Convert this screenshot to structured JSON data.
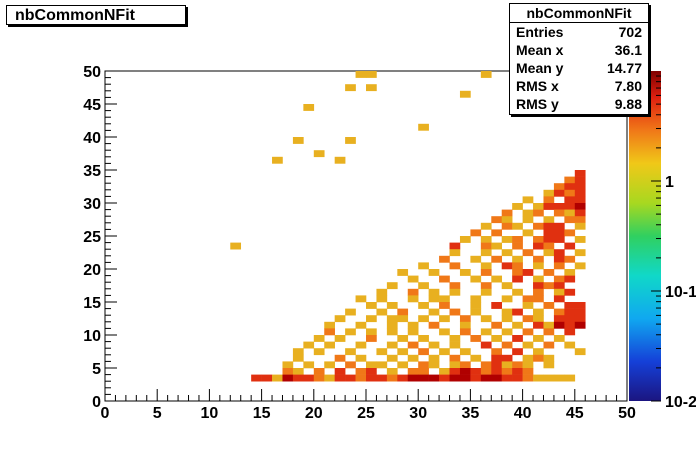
{
  "title": "nbCommonNFit",
  "stats": {
    "title": "nbCommonNFit",
    "rows": [
      {
        "label": "Entries",
        "value": "702"
      },
      {
        "label": "Mean x",
        "value": "36.1"
      },
      {
        "label": "Mean y",
        "value": "14.77"
      },
      {
        "label": "RMS x",
        "value": "7.80"
      },
      {
        "label": "RMS y",
        "value": "9.88"
      }
    ]
  },
  "chart_data": {
    "type": "heatmap",
    "title": "nbCommonNFit",
    "xlabel": "",
    "ylabel": "",
    "xlim": [
      0,
      50
    ],
    "ylim": [
      0,
      50
    ],
    "bin_width": 1,
    "x_ticks": [
      0,
      5,
      10,
      15,
      20,
      25,
      30,
      35,
      40,
      45,
      50
    ],
    "y_ticks": [
      0,
      5,
      10,
      15,
      20,
      25,
      30,
      35,
      40,
      45,
      50
    ],
    "colorbar": {
      "scale": "log",
      "ticks": [
        {
          "value": 1,
          "label": "1"
        },
        {
          "value": 0.1,
          "label": "10-1"
        },
        {
          "value": 0.01,
          "label": "10-2"
        }
      ],
      "range": [
        0.01,
        10
      ]
    },
    "color_levels": {
      "low": "#e8b020",
      "mid": "#f07818",
      "high": "#e03010",
      "max": "#b00000"
    },
    "cells": [
      [
        24,
        49,
        "low"
      ],
      [
        25,
        49,
        "low"
      ],
      [
        36,
        49,
        "low"
      ],
      [
        23,
        47,
        "low"
      ],
      [
        25,
        47,
        "low"
      ],
      [
        34,
        46,
        "low"
      ],
      [
        19,
        44,
        "low"
      ],
      [
        30,
        41,
        "low"
      ],
      [
        18,
        39,
        "low"
      ],
      [
        23,
        39,
        "low"
      ],
      [
        20,
        37,
        "low"
      ],
      [
        16,
        36,
        "low"
      ],
      [
        22,
        36,
        "low"
      ],
      [
        12,
        23,
        "low"
      ],
      [
        45,
        34,
        "high"
      ],
      [
        44,
        33,
        "mid"
      ],
      [
        45,
        33,
        "high"
      ],
      [
        43,
        32,
        "mid"
      ],
      [
        44,
        32,
        "high"
      ],
      [
        45,
        32,
        "high"
      ],
      [
        42,
        31,
        "low"
      ],
      [
        43,
        31,
        "high"
      ],
      [
        44,
        31,
        "mid"
      ],
      [
        45,
        31,
        "high"
      ],
      [
        40,
        30,
        "low"
      ],
      [
        42,
        30,
        "mid"
      ],
      [
        44,
        30,
        "high"
      ],
      [
        45,
        30,
        "high"
      ],
      [
        39,
        29,
        "low"
      ],
      [
        41,
        29,
        "low"
      ],
      [
        42,
        29,
        "high"
      ],
      [
        43,
        29,
        "high"
      ],
      [
        44,
        29,
        "high"
      ],
      [
        45,
        29,
        "max"
      ],
      [
        38,
        28,
        "mid"
      ],
      [
        40,
        28,
        "low"
      ],
      [
        41,
        28,
        "mid"
      ],
      [
        43,
        28,
        "mid"
      ],
      [
        44,
        28,
        "low"
      ],
      [
        45,
        28,
        "high"
      ],
      [
        37,
        27,
        "mid"
      ],
      [
        38,
        27,
        "low"
      ],
      [
        40,
        27,
        "low"
      ],
      [
        42,
        27,
        "low"
      ],
      [
        44,
        27,
        "mid"
      ],
      [
        45,
        27,
        "mid"
      ],
      [
        36,
        26,
        "low"
      ],
      [
        38,
        26,
        "mid"
      ],
      [
        39,
        26,
        "low"
      ],
      [
        41,
        26,
        "mid"
      ],
      [
        42,
        26,
        "high"
      ],
      [
        43,
        26,
        "high"
      ],
      [
        45,
        26,
        "low"
      ],
      [
        35,
        25,
        "mid"
      ],
      [
        37,
        25,
        "mid"
      ],
      [
        40,
        25,
        "low"
      ],
      [
        42,
        25,
        "high"
      ],
      [
        43,
        25,
        "high"
      ],
      [
        44,
        25,
        "mid"
      ],
      [
        34,
        24,
        "low"
      ],
      [
        36,
        24,
        "low"
      ],
      [
        38,
        24,
        "low"
      ],
      [
        39,
        24,
        "mid"
      ],
      [
        41,
        24,
        "mid"
      ],
      [
        42,
        24,
        "high"
      ],
      [
        43,
        24,
        "high"
      ],
      [
        45,
        24,
        "low"
      ],
      [
        33,
        23,
        "high"
      ],
      [
        36,
        23,
        "mid"
      ],
      [
        37,
        23,
        "low"
      ],
      [
        39,
        23,
        "mid"
      ],
      [
        41,
        23,
        "high"
      ],
      [
        42,
        23,
        "mid"
      ],
      [
        44,
        23,
        "high"
      ],
      [
        33,
        22,
        "low"
      ],
      [
        36,
        22,
        "low"
      ],
      [
        38,
        22,
        "low"
      ],
      [
        40,
        22,
        "mid"
      ],
      [
        42,
        22,
        "low"
      ],
      [
        43,
        22,
        "high"
      ],
      [
        45,
        22,
        "low"
      ],
      [
        32,
        21,
        "mid"
      ],
      [
        35,
        21,
        "low"
      ],
      [
        37,
        21,
        "mid"
      ],
      [
        39,
        21,
        "low"
      ],
      [
        41,
        21,
        "mid"
      ],
      [
        43,
        21,
        "high"
      ],
      [
        44,
        21,
        "mid"
      ],
      [
        30,
        20,
        "low"
      ],
      [
        33,
        20,
        "mid"
      ],
      [
        36,
        20,
        "low"
      ],
      [
        38,
        20,
        "high"
      ],
      [
        39,
        20,
        "mid"
      ],
      [
        41,
        20,
        "low"
      ],
      [
        43,
        20,
        "mid"
      ],
      [
        45,
        20,
        "low"
      ],
      [
        28,
        19,
        "low"
      ],
      [
        31,
        19,
        "low"
      ],
      [
        34,
        19,
        "low"
      ],
      [
        36,
        19,
        "mid"
      ],
      [
        39,
        19,
        "mid"
      ],
      [
        40,
        19,
        "high"
      ],
      [
        42,
        19,
        "mid"
      ],
      [
        44,
        19,
        "low"
      ],
      [
        29,
        18,
        "low"
      ],
      [
        32,
        18,
        "mid"
      ],
      [
        35,
        18,
        "low"
      ],
      [
        37,
        18,
        "low"
      ],
      [
        39,
        18,
        "high"
      ],
      [
        41,
        18,
        "low"
      ],
      [
        43,
        18,
        "mid"
      ],
      [
        44,
        18,
        "high"
      ],
      [
        27,
        17,
        "low"
      ],
      [
        30,
        17,
        "low"
      ],
      [
        33,
        17,
        "mid"
      ],
      [
        36,
        17,
        "mid"
      ],
      [
        38,
        17,
        "low"
      ],
      [
        41,
        17,
        "high"
      ],
      [
        42,
        17,
        "mid"
      ],
      [
        43,
        17,
        "high"
      ],
      [
        26,
        16,
        "low"
      ],
      [
        29,
        16,
        "mid"
      ],
      [
        31,
        16,
        "low"
      ],
      [
        33,
        16,
        "low"
      ],
      [
        36,
        16,
        "low"
      ],
      [
        39,
        16,
        "low"
      ],
      [
        41,
        16,
        "mid"
      ],
      [
        43,
        16,
        "low"
      ],
      [
        44,
        16,
        "high"
      ],
      [
        24,
        15,
        "low"
      ],
      [
        26,
        15,
        "low"
      ],
      [
        29,
        15,
        "low"
      ],
      [
        31,
        15,
        "low"
      ],
      [
        32,
        15,
        "low"
      ],
      [
        35,
        15,
        "low"
      ],
      [
        38,
        15,
        "low"
      ],
      [
        40,
        15,
        "mid"
      ],
      [
        41,
        15,
        "mid"
      ],
      [
        43,
        15,
        "high"
      ],
      [
        25,
        14,
        "low"
      ],
      [
        27,
        14,
        "low"
      ],
      [
        30,
        14,
        "low"
      ],
      [
        32,
        14,
        "mid"
      ],
      [
        35,
        14,
        "low"
      ],
      [
        37,
        14,
        "high"
      ],
      [
        40,
        14,
        "low"
      ],
      [
        42,
        14,
        "mid"
      ],
      [
        44,
        14,
        "high"
      ],
      [
        45,
        14,
        "high"
      ],
      [
        23,
        13,
        "low"
      ],
      [
        26,
        13,
        "low"
      ],
      [
        28,
        13,
        "mid"
      ],
      [
        31,
        13,
        "low"
      ],
      [
        33,
        13,
        "mid"
      ],
      [
        35,
        13,
        "low"
      ],
      [
        38,
        13,
        "low"
      ],
      [
        39,
        13,
        "high"
      ],
      [
        41,
        13,
        "low"
      ],
      [
        43,
        13,
        "mid"
      ],
      [
        44,
        13,
        "high"
      ],
      [
        45,
        13,
        "high"
      ],
      [
        22,
        12,
        "low"
      ],
      [
        25,
        12,
        "low"
      ],
      [
        27,
        12,
        "low"
      ],
      [
        28,
        12,
        "low"
      ],
      [
        30,
        12,
        "low"
      ],
      [
        32,
        12,
        "low"
      ],
      [
        34,
        12,
        "mid"
      ],
      [
        36,
        12,
        "low"
      ],
      [
        38,
        12,
        "low"
      ],
      [
        40,
        12,
        "mid"
      ],
      [
        41,
        12,
        "low"
      ],
      [
        43,
        12,
        "high"
      ],
      [
        44,
        12,
        "high"
      ],
      [
        45,
        12,
        "high"
      ],
      [
        21,
        11,
        "low"
      ],
      [
        24,
        11,
        "low"
      ],
      [
        27,
        11,
        "low"
      ],
      [
        29,
        11,
        "low"
      ],
      [
        31,
        11,
        "mid"
      ],
      [
        34,
        11,
        "low"
      ],
      [
        37,
        11,
        "mid"
      ],
      [
        39,
        11,
        "low"
      ],
      [
        41,
        11,
        "high"
      ],
      [
        42,
        11,
        "low"
      ],
      [
        43,
        11,
        "max"
      ],
      [
        44,
        11,
        "high"
      ],
      [
        45,
        11,
        "max"
      ],
      [
        21,
        10,
        "mid"
      ],
      [
        23,
        10,
        "low"
      ],
      [
        25,
        10,
        "low"
      ],
      [
        27,
        10,
        "low"
      ],
      [
        29,
        10,
        "low"
      ],
      [
        32,
        10,
        "low"
      ],
      [
        34,
        10,
        "mid"
      ],
      [
        36,
        10,
        "low"
      ],
      [
        38,
        10,
        "low"
      ],
      [
        40,
        10,
        "mid"
      ],
      [
        42,
        10,
        "mid"
      ],
      [
        44,
        10,
        "high"
      ],
      [
        20,
        9,
        "low"
      ],
      [
        22,
        9,
        "low"
      ],
      [
        25,
        9,
        "mid"
      ],
      [
        28,
        9,
        "low"
      ],
      [
        30,
        9,
        "low"
      ],
      [
        33,
        9,
        "low"
      ],
      [
        35,
        9,
        "mid"
      ],
      [
        37,
        9,
        "low"
      ],
      [
        39,
        9,
        "high"
      ],
      [
        41,
        9,
        "low"
      ],
      [
        43,
        9,
        "low"
      ],
      [
        19,
        8,
        "low"
      ],
      [
        21,
        8,
        "low"
      ],
      [
        24,
        8,
        "low"
      ],
      [
        27,
        8,
        "low"
      ],
      [
        29,
        8,
        "mid"
      ],
      [
        31,
        8,
        "low"
      ],
      [
        33,
        8,
        "low"
      ],
      [
        36,
        8,
        "high"
      ],
      [
        38,
        8,
        "mid"
      ],
      [
        40,
        8,
        "low"
      ],
      [
        42,
        8,
        "mid"
      ],
      [
        44,
        8,
        "low"
      ],
      [
        18,
        7,
        "low"
      ],
      [
        20,
        7,
        "low"
      ],
      [
        23,
        7,
        "low"
      ],
      [
        26,
        7,
        "low"
      ],
      [
        28,
        7,
        "low"
      ],
      [
        30,
        7,
        "mid"
      ],
      [
        32,
        7,
        "low"
      ],
      [
        34,
        7,
        "low"
      ],
      [
        37,
        7,
        "mid"
      ],
      [
        39,
        7,
        "high"
      ],
      [
        41,
        7,
        "low"
      ],
      [
        45,
        7,
        "low"
      ],
      [
        18,
        6,
        "low"
      ],
      [
        22,
        6,
        "mid"
      ],
      [
        24,
        6,
        "low"
      ],
      [
        27,
        6,
        "low"
      ],
      [
        29,
        6,
        "low"
      ],
      [
        31,
        6,
        "low"
      ],
      [
        33,
        6,
        "mid"
      ],
      [
        35,
        6,
        "low"
      ],
      [
        37,
        6,
        "high"
      ],
      [
        38,
        6,
        "high"
      ],
      [
        40,
        6,
        "low"
      ],
      [
        41,
        6,
        "mid"
      ],
      [
        42,
        6,
        "low"
      ],
      [
        17,
        5,
        "low"
      ],
      [
        19,
        5,
        "low"
      ],
      [
        21,
        5,
        "low"
      ],
      [
        23,
        5,
        "mid"
      ],
      [
        25,
        5,
        "low"
      ],
      [
        26,
        5,
        "low"
      ],
      [
        28,
        5,
        "low"
      ],
      [
        30,
        5,
        "mid"
      ],
      [
        31,
        5,
        "low"
      ],
      [
        33,
        5,
        "low"
      ],
      [
        34,
        5,
        "mid"
      ],
      [
        36,
        5,
        "mid"
      ],
      [
        37,
        5,
        "high"
      ],
      [
        38,
        5,
        "low"
      ],
      [
        39,
        5,
        "mid"
      ],
      [
        40,
        5,
        "low"
      ],
      [
        42,
        5,
        "low"
      ],
      [
        17,
        4,
        "mid"
      ],
      [
        18,
        4,
        "low"
      ],
      [
        20,
        4,
        "mid"
      ],
      [
        22,
        4,
        "high"
      ],
      [
        24,
        4,
        "mid"
      ],
      [
        25,
        4,
        "high"
      ],
      [
        27,
        4,
        "low"
      ],
      [
        29,
        4,
        "mid"
      ],
      [
        30,
        4,
        "mid"
      ],
      [
        32,
        4,
        "low"
      ],
      [
        33,
        4,
        "high"
      ],
      [
        34,
        4,
        "max"
      ],
      [
        35,
        4,
        "high"
      ],
      [
        36,
        4,
        "mid"
      ],
      [
        37,
        4,
        "high"
      ],
      [
        38,
        4,
        "mid"
      ],
      [
        39,
        4,
        "high"
      ],
      [
        40,
        4,
        "mid"
      ],
      [
        14,
        3,
        "high"
      ],
      [
        15,
        3,
        "high"
      ],
      [
        16,
        3,
        "low"
      ],
      [
        17,
        3,
        "max"
      ],
      [
        18,
        3,
        "high"
      ],
      [
        19,
        3,
        "high"
      ],
      [
        20,
        3,
        "mid"
      ],
      [
        21,
        3,
        "low"
      ],
      [
        22,
        3,
        "high"
      ],
      [
        23,
        3,
        "high"
      ],
      [
        24,
        3,
        "mid"
      ],
      [
        25,
        3,
        "high"
      ],
      [
        26,
        3,
        "high"
      ],
      [
        27,
        3,
        "mid"
      ],
      [
        28,
        3,
        "high"
      ],
      [
        29,
        3,
        "max"
      ],
      [
        30,
        3,
        "max"
      ],
      [
        31,
        3,
        "max"
      ],
      [
        32,
        3,
        "high"
      ],
      [
        33,
        3,
        "max"
      ],
      [
        34,
        3,
        "max"
      ],
      [
        35,
        3,
        "high"
      ],
      [
        36,
        3,
        "max"
      ],
      [
        37,
        3,
        "max"
      ],
      [
        38,
        3,
        "high"
      ],
      [
        39,
        3,
        "high"
      ],
      [
        40,
        3,
        "mid"
      ],
      [
        41,
        3,
        "low"
      ],
      [
        42,
        3,
        "low"
      ],
      [
        43,
        3,
        "low"
      ],
      [
        44,
        3,
        "low"
      ]
    ]
  }
}
